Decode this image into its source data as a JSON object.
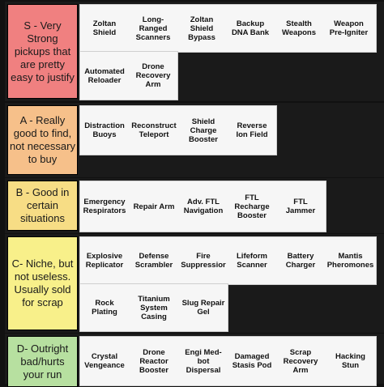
{
  "tiers": [
    {
      "label": "S - Very Strong pickups that are pretty easy to justify",
      "color": "#f08080",
      "items": [
        "Zoltan\nShield",
        "Long-\nRanged\nScanners",
        "Zoltan\nShield\nBypass",
        "Backup\nDNA Bank",
        "Stealth\nWeapons",
        "Weapon\nPre-Igniter",
        "Automated\nReloader",
        "Drone\nRecovery\nArm"
      ]
    },
    {
      "label": "A - Really good to find, not necessary to buy",
      "color": "#f6c08a",
      "items": [
        "Distraction\nBuoys",
        "Reconstruct\nTeleport",
        "Shield\nCharge\nBooster",
        "Reverse\nIon Field"
      ]
    },
    {
      "label": "B - Good in certain situations",
      "color": "#f7dd85",
      "items": [
        "Emergency\nRespirators",
        "Repair Arm",
        "Adv. FTL\nNavigation",
        "FTL\nRecharge\nBooster",
        "FTL\nJammer"
      ]
    },
    {
      "label": "C- Niche, but not useless. Usually sold for scrap",
      "color": "#f8f08a",
      "items": [
        "Explosive\nReplicator",
        "Defense\nScrambler",
        "Fire\nSuppressior",
        "Lifeform\nScanner",
        "Battery\nCharger",
        "Mantis\nPheromones",
        "Rock\nPlating",
        "Titanium\nSystem\nCasing",
        "Slug Repair\nGel"
      ]
    },
    {
      "label": "D- Outright bad/hurts your run",
      "color": "#b7e0a0",
      "items": [
        "Crystal\nVengeance",
        "Drone\nReactor\nBooster",
        "Engi Med-\nbot\nDispersal",
        "Damaged\nStasis Pod",
        "Scrap\nRecovery\nArm",
        "Hacking\nStun"
      ]
    }
  ]
}
